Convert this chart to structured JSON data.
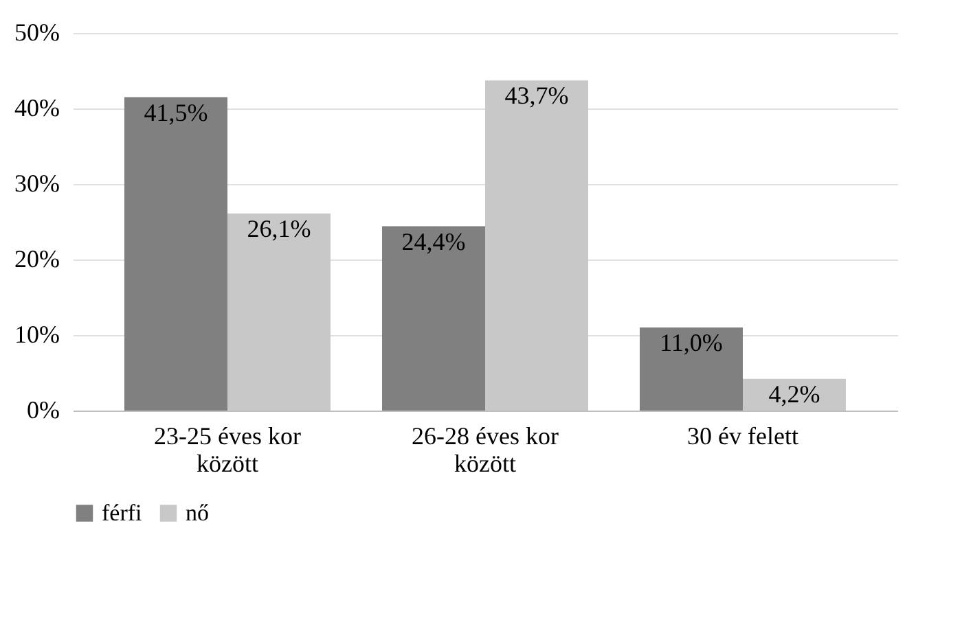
{
  "chart_data": {
    "type": "bar",
    "categories": [
      "23-25 éves kor között",
      "26-28 éves kor között",
      "30 év felett"
    ],
    "series": [
      {
        "name": "férfi",
        "color": "#808080",
        "values": [
          41.5,
          24.4,
          11.0
        ],
        "value_labels": [
          "41,5%",
          "24,4%",
          "11,0%"
        ]
      },
      {
        "name": "nő",
        "color": "#c8c8c8",
        "values": [
          26.1,
          43.7,
          4.2
        ],
        "value_labels": [
          "26,1%",
          "43,7%",
          "4,2%"
        ]
      }
    ],
    "ylim": [
      0,
      50
    ],
    "yticks": [
      {
        "value": 0,
        "label": "0%"
      },
      {
        "value": 10,
        "label": "10%"
      },
      {
        "value": 20,
        "label": "20%"
      },
      {
        "value": 30,
        "label": "30%"
      },
      {
        "value": 40,
        "label": "40%"
      },
      {
        "value": 50,
        "label": "50%"
      }
    ],
    "grid": "y",
    "legend": "bottom"
  }
}
